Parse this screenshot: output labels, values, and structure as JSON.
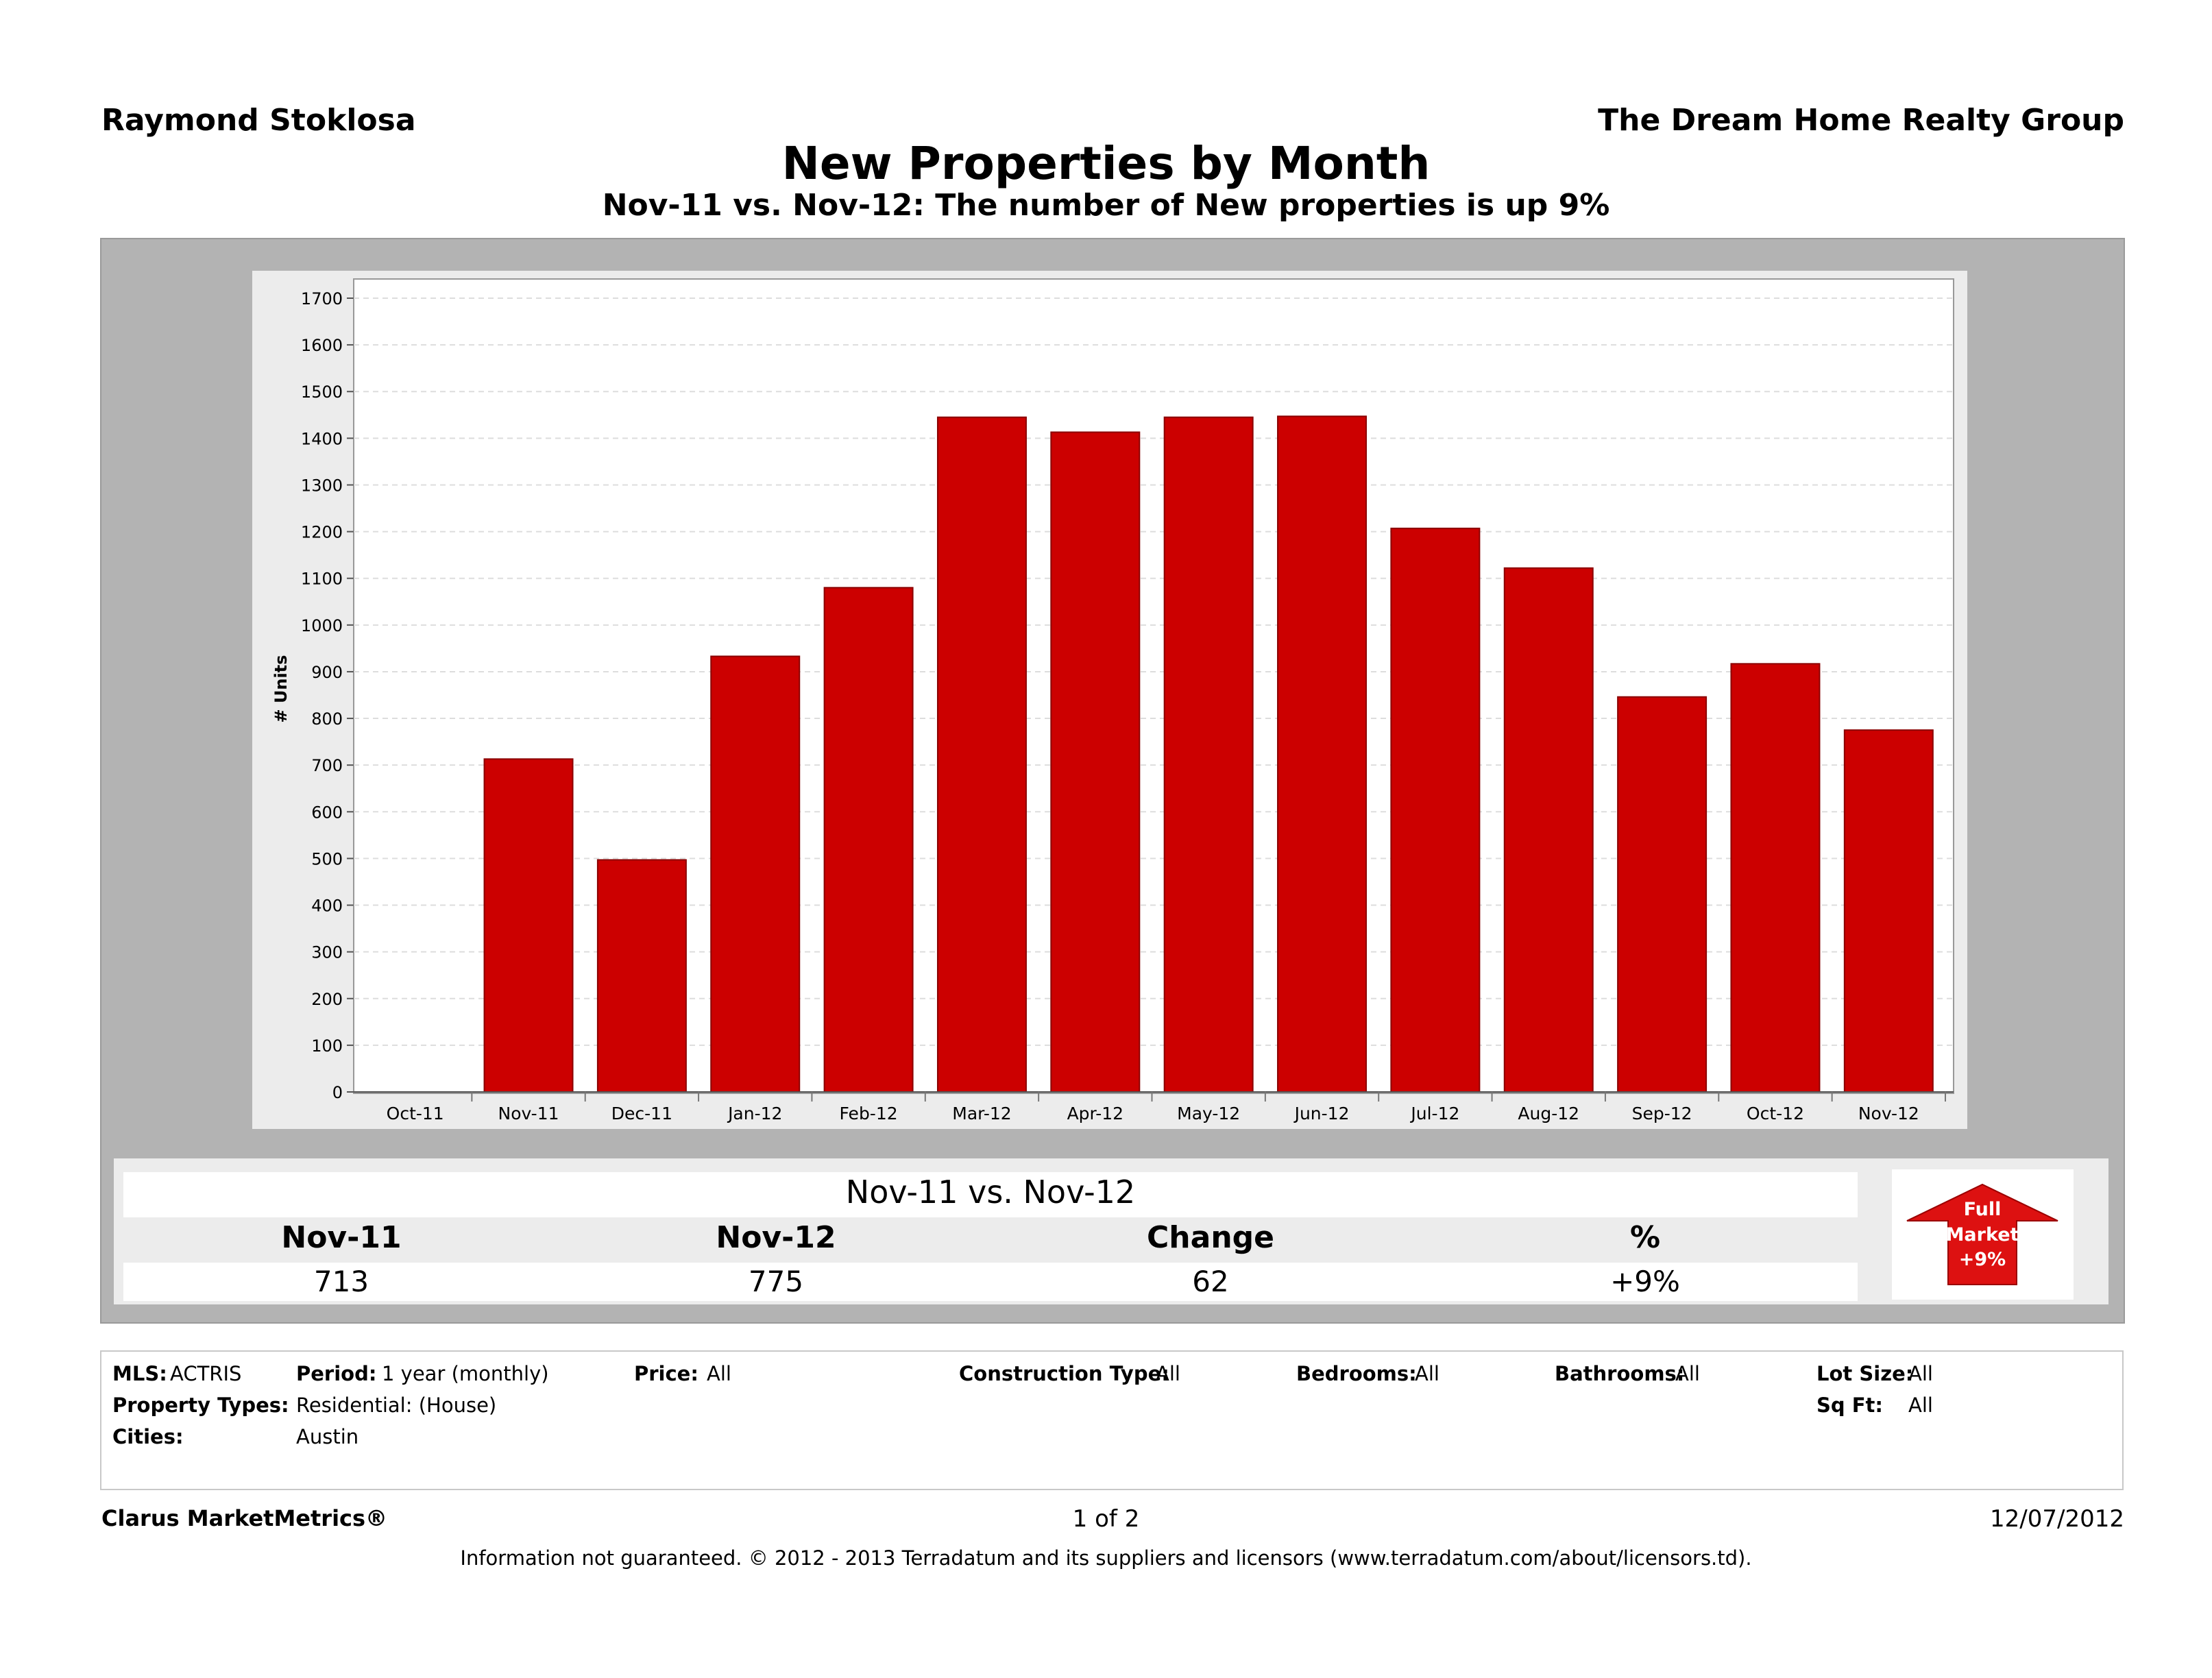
{
  "header": {
    "agent": "Raymond Stoklosa",
    "company": "The Dream Home Realty Group",
    "title": "New Properties by Month",
    "subtitle": "Nov-11 vs. Nov-12: The number of New properties is up 9%"
  },
  "colors": {
    "bar": "#cc0000",
    "bar_edge": "#8b0000",
    "panel": "#b3b3b3",
    "badge": "#dd1111"
  },
  "chart_data": {
    "type": "bar",
    "title": "New Properties by Month",
    "ylabel": "# Units",
    "xlabel": "",
    "ylim": [
      0,
      1700
    ],
    "yticks": [
      0,
      100,
      200,
      300,
      400,
      500,
      600,
      700,
      800,
      900,
      1000,
      1100,
      1200,
      1300,
      1400,
      1500,
      1600,
      1700
    ],
    "grid": true,
    "categories": [
      "Oct-11",
      "Nov-11",
      "Dec-11",
      "Jan-12",
      "Feb-12",
      "Mar-12",
      "Apr-12",
      "May-12",
      "Jun-12",
      "Jul-12",
      "Aug-12",
      "Sep-12",
      "Oct-12",
      "Nov-12"
    ],
    "values": [
      null,
      713,
      497,
      933,
      1080,
      1445,
      1413,
      1445,
      1447,
      1207,
      1122,
      846,
      917,
      775
    ]
  },
  "stats": {
    "title": "Nov-11 vs. Nov-12",
    "labels": [
      "Nov-11",
      "Nov-12",
      "Change",
      "%"
    ],
    "values": [
      "713",
      "775",
      "62",
      "+9%"
    ]
  },
  "badge": {
    "line1": "Full",
    "line2": "Market",
    "line3": "+9%"
  },
  "meta": {
    "mls_label": "MLS:",
    "mls_value": "ACTRIS",
    "period_label": "Period:",
    "period_value": "1 year (monthly)",
    "price_label": "Price:",
    "price_value": "All",
    "construction_label": "Construction Type:",
    "construction_value": "All",
    "bedrooms_label": "Bedrooms:",
    "bedrooms_value": "All",
    "bathrooms_label": "Bathrooms:",
    "bathrooms_value": "All",
    "lotsize_label": "Lot Size:",
    "lotsize_value": "All",
    "proptypes_label": "Property Types:",
    "proptypes_value": "Residential: (House)",
    "sqft_label": "Sq Ft:",
    "sqft_value": "All",
    "cities_label": "Cities:",
    "cities_value": "Austin"
  },
  "footer": {
    "brand": "Clarus MarketMetrics®",
    "page": "1 of 2",
    "date": "12/07/2012",
    "disclaimer": "Information not guaranteed.  © 2012 - 2013 Terradatum and its suppliers and licensors (www.terradatum.com/about/licensors.td)."
  }
}
